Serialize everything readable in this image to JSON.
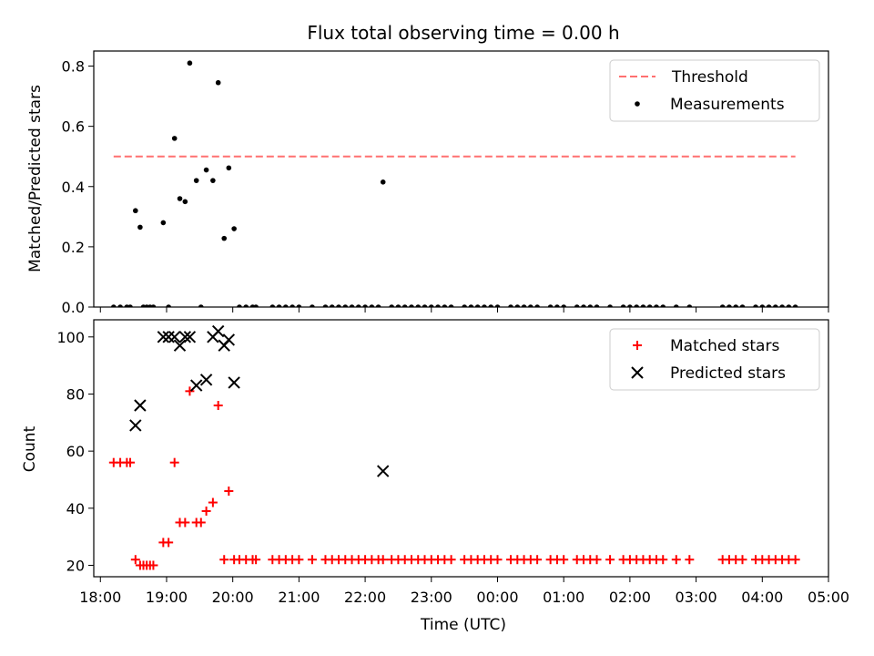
{
  "chart_data": [
    {
      "type": "scatter",
      "title": "Flux total observing time = 0.00 h",
      "xlabel": "",
      "ylabel": "Matched/Predicted stars",
      "xlim": [
        17.9,
        29.0
      ],
      "ylim": [
        0.0,
        0.85
      ],
      "yticks": [
        "0.0",
        "0.2",
        "0.4",
        "0.6",
        "0.8"
      ],
      "grid": false,
      "legend_position": "top-right",
      "threshold": {
        "name": "Threshold",
        "y": 0.5,
        "x_start": 18.2,
        "x_end": 28.5,
        "color": "#ff7070",
        "style": "dashed"
      },
      "series": [
        {
          "name": "Measurements",
          "marker": "dot",
          "color": "#000000",
          "points": [
            [
              18.2,
              0
            ],
            [
              18.3,
              0
            ],
            [
              18.4,
              0
            ],
            [
              18.45,
              0
            ],
            [
              18.53,
              0.32
            ],
            [
              18.6,
              0.265
            ],
            [
              18.65,
              0
            ],
            [
              18.7,
              0
            ],
            [
              18.75,
              0
            ],
            [
              18.8,
              0
            ],
            [
              18.95,
              0.28
            ],
            [
              19.03,
              0
            ],
            [
              19.12,
              0.56
            ],
            [
              19.2,
              0.36
            ],
            [
              19.28,
              0.35
            ],
            [
              19.35,
              0.81
            ],
            [
              19.45,
              0.42
            ],
            [
              19.52,
              0
            ],
            [
              19.6,
              0.455
            ],
            [
              19.7,
              0.42
            ],
            [
              19.78,
              0.745
            ],
            [
              19.87,
              0.228
            ],
            [
              19.94,
              0.462
            ],
            [
              20.02,
              0.26
            ],
            [
              20.1,
              0
            ],
            [
              20.2,
              0
            ],
            [
              20.3,
              0
            ],
            [
              20.35,
              0
            ],
            [
              20.6,
              0
            ],
            [
              20.7,
              0
            ],
            [
              20.8,
              0
            ],
            [
              20.9,
              0
            ],
            [
              21.0,
              0
            ],
            [
              21.2,
              0
            ],
            [
              21.4,
              0
            ],
            [
              21.5,
              0
            ],
            [
              21.6,
              0
            ],
            [
              21.7,
              0
            ],
            [
              21.8,
              0
            ],
            [
              21.9,
              0
            ],
            [
              22.0,
              0
            ],
            [
              22.1,
              0
            ],
            [
              22.2,
              0
            ],
            [
              22.27,
              0.415
            ],
            [
              22.4,
              0
            ],
            [
              22.5,
              0
            ],
            [
              22.6,
              0
            ],
            [
              22.7,
              0
            ],
            [
              22.8,
              0
            ],
            [
              22.9,
              0
            ],
            [
              23.0,
              0
            ],
            [
              23.1,
              0
            ],
            [
              23.2,
              0
            ],
            [
              23.3,
              0
            ],
            [
              23.5,
              0
            ],
            [
              23.6,
              0
            ],
            [
              23.7,
              0
            ],
            [
              23.8,
              0
            ],
            [
              23.9,
              0
            ],
            [
              24.0,
              0
            ],
            [
              24.2,
              0
            ],
            [
              24.3,
              0
            ],
            [
              24.4,
              0
            ],
            [
              24.5,
              0
            ],
            [
              24.6,
              0
            ],
            [
              24.8,
              0
            ],
            [
              24.9,
              0
            ],
            [
              25.0,
              0
            ],
            [
              25.2,
              0
            ],
            [
              25.3,
              0
            ],
            [
              25.4,
              0
            ],
            [
              25.5,
              0
            ],
            [
              25.7,
              0
            ],
            [
              25.9,
              0
            ],
            [
              26.0,
              0
            ],
            [
              26.1,
              0
            ],
            [
              26.2,
              0
            ],
            [
              26.3,
              0
            ],
            [
              26.4,
              0
            ],
            [
              26.5,
              0
            ],
            [
              26.7,
              0
            ],
            [
              26.9,
              0
            ],
            [
              27.4,
              0
            ],
            [
              27.5,
              0
            ],
            [
              27.6,
              0
            ],
            [
              27.7,
              0
            ],
            [
              27.9,
              0
            ],
            [
              28.0,
              0
            ],
            [
              28.1,
              0
            ],
            [
              28.2,
              0
            ],
            [
              28.3,
              0
            ],
            [
              28.4,
              0
            ],
            [
              28.5,
              0
            ]
          ]
        }
      ]
    },
    {
      "type": "scatter",
      "title": "",
      "xlabel": "Time (UTC)",
      "ylabel": "Count",
      "xlim": [
        17.9,
        29.0
      ],
      "ylim": [
        16,
        106
      ],
      "xticks": [
        "18:00",
        "19:00",
        "20:00",
        "21:00",
        "22:00",
        "23:00",
        "00:00",
        "01:00",
        "02:00",
        "03:00",
        "04:00",
        "05:00"
      ],
      "yticks": [
        "20",
        "40",
        "60",
        "80",
        "100"
      ],
      "grid": false,
      "legend_position": "top-right",
      "series": [
        {
          "name": "Matched stars",
          "marker": "plus",
          "color": "#ff0000",
          "points": [
            [
              18.2,
              56
            ],
            [
              18.3,
              56
            ],
            [
              18.4,
              56
            ],
            [
              18.45,
              56
            ],
            [
              18.53,
              22
            ],
            [
              18.6,
              20
            ],
            [
              18.65,
              20
            ],
            [
              18.7,
              20
            ],
            [
              18.75,
              20
            ],
            [
              18.8,
              20
            ],
            [
              18.95,
              28
            ],
            [
              19.03,
              28
            ],
            [
              19.12,
              56
            ],
            [
              19.2,
              35
            ],
            [
              19.28,
              35
            ],
            [
              19.35,
              81
            ],
            [
              19.45,
              35
            ],
            [
              19.52,
              35
            ],
            [
              19.6,
              39
            ],
            [
              19.7,
              42
            ],
            [
              19.78,
              76
            ],
            [
              19.87,
              22
            ],
            [
              19.94,
              46
            ],
            [
              20.02,
              22
            ],
            [
              20.1,
              22
            ],
            [
              20.2,
              22
            ],
            [
              20.3,
              22
            ],
            [
              20.35,
              22
            ],
            [
              20.6,
              22
            ],
            [
              20.7,
              22
            ],
            [
              20.8,
              22
            ],
            [
              20.9,
              22
            ],
            [
              21.0,
              22
            ],
            [
              21.2,
              22
            ],
            [
              21.4,
              22
            ],
            [
              21.5,
              22
            ],
            [
              21.6,
              22
            ],
            [
              21.7,
              22
            ],
            [
              21.8,
              22
            ],
            [
              21.9,
              22
            ],
            [
              22.0,
              22
            ],
            [
              22.1,
              22
            ],
            [
              22.2,
              22
            ],
            [
              22.27,
              22
            ],
            [
              22.4,
              22
            ],
            [
              22.5,
              22
            ],
            [
              22.6,
              22
            ],
            [
              22.7,
              22
            ],
            [
              22.8,
              22
            ],
            [
              22.9,
              22
            ],
            [
              23.0,
              22
            ],
            [
              23.1,
              22
            ],
            [
              23.2,
              22
            ],
            [
              23.3,
              22
            ],
            [
              23.5,
              22
            ],
            [
              23.6,
              22
            ],
            [
              23.7,
              22
            ],
            [
              23.8,
              22
            ],
            [
              23.9,
              22
            ],
            [
              24.0,
              22
            ],
            [
              24.2,
              22
            ],
            [
              24.3,
              22
            ],
            [
              24.4,
              22
            ],
            [
              24.5,
              22
            ],
            [
              24.6,
              22
            ],
            [
              24.8,
              22
            ],
            [
              24.9,
              22
            ],
            [
              25.0,
              22
            ],
            [
              25.2,
              22
            ],
            [
              25.3,
              22
            ],
            [
              25.4,
              22
            ],
            [
              25.5,
              22
            ],
            [
              25.7,
              22
            ],
            [
              25.9,
              22
            ],
            [
              26.0,
              22
            ],
            [
              26.1,
              22
            ],
            [
              26.2,
              22
            ],
            [
              26.3,
              22
            ],
            [
              26.4,
              22
            ],
            [
              26.5,
              22
            ],
            [
              26.7,
              22
            ],
            [
              26.9,
              22
            ],
            [
              27.4,
              22
            ],
            [
              27.5,
              22
            ],
            [
              27.6,
              22
            ],
            [
              27.7,
              22
            ],
            [
              27.9,
              22
            ],
            [
              28.0,
              22
            ],
            [
              28.1,
              22
            ],
            [
              28.2,
              22
            ],
            [
              28.3,
              22
            ],
            [
              28.4,
              22
            ],
            [
              28.5,
              22
            ]
          ]
        },
        {
          "name": "Predicted stars",
          "marker": "x",
          "color": "#000000",
          "points": [
            [
              18.53,
              69
            ],
            [
              18.6,
              76
            ],
            [
              18.95,
              100
            ],
            [
              19.03,
              100
            ],
            [
              19.12,
              100
            ],
            [
              19.2,
              97
            ],
            [
              19.28,
              100
            ],
            [
              19.35,
              100
            ],
            [
              19.45,
              83
            ],
            [
              19.6,
              85
            ],
            [
              19.7,
              100
            ],
            [
              19.78,
              102
            ],
            [
              19.87,
              97
            ],
            [
              19.94,
              99
            ],
            [
              20.02,
              84
            ],
            [
              22.27,
              53
            ]
          ]
        }
      ]
    }
  ]
}
